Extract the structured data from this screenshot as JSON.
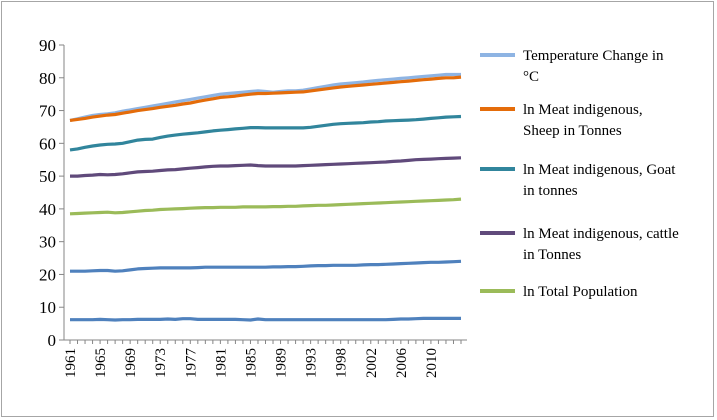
{
  "chart_data": {
    "type": "line",
    "title": "",
    "xlabel": "",
    "ylabel": "",
    "ylim": [
      0,
      90
    ],
    "yticks": [
      0,
      10,
      20,
      30,
      40,
      50,
      60,
      70,
      80,
      90
    ],
    "x": [
      1961,
      1962,
      1963,
      1964,
      1965,
      1966,
      1967,
      1968,
      1969,
      1970,
      1971,
      1972,
      1973,
      1974,
      1975,
      1976,
      1977,
      1978,
      1979,
      1980,
      1981,
      1982,
      1983,
      1984,
      1985,
      1986,
      1987,
      1988,
      1989,
      1990,
      1991,
      1992,
      1993,
      1994,
      1995,
      1996,
      1997,
      1998,
      1999,
      2000,
      2001,
      2002,
      2003,
      2004,
      2005,
      2006,
      2007,
      2008,
      2009,
      2010,
      2011,
      2012,
      2013
    ],
    "xtick_labels": [
      "1961",
      "1965",
      "1969",
      "1973",
      "1977",
      "1981",
      "1985",
      "1989",
      "1993",
      "1998",
      "2002",
      "2006",
      "2010"
    ],
    "xtick_index": [
      0,
      4,
      8,
      12,
      16,
      20,
      24,
      28,
      32,
      36,
      40,
      44,
      48
    ],
    "legend_position": "right",
    "series": [
      {
        "name": "Temperature Change in °C",
        "legend_lines": [
          "Temperature Change in",
          "°C"
        ],
        "color": "#8eb4e3",
        "values": [
          67,
          67.5,
          68,
          68.5,
          68.8,
          69,
          69.3,
          69.8,
          70.2,
          70.6,
          71,
          71.4,
          71.8,
          72.2,
          72.6,
          73,
          73.4,
          73.8,
          74.2,
          74.6,
          75,
          75.2,
          75.4,
          75.6,
          75.8,
          76,
          75.8,
          75.6,
          75.8,
          76,
          76,
          76.2,
          76.6,
          77,
          77.4,
          77.8,
          78.1,
          78.3,
          78.5,
          78.7,
          79,
          79.2,
          79.4,
          79.6,
          79.8,
          80,
          80.2,
          80.4,
          80.6,
          80.8,
          81,
          81,
          81
        ]
      },
      {
        "name": "ln Meat indigenous, Sheep in Tonnes",
        "legend_lines": [
          "ln Meat indigenous,",
          "Sheep in Tonnes"
        ],
        "color": "#e46c0a",
        "values": [
          67,
          67.3,
          67.6,
          68,
          68.3,
          68.6,
          68.8,
          69.2,
          69.6,
          70,
          70.3,
          70.6,
          71,
          71.3,
          71.6,
          72,
          72.3,
          72.8,
          73.2,
          73.6,
          74,
          74.2,
          74.4,
          74.7,
          75,
          75.2,
          75.2,
          75.3,
          75.4,
          75.5,
          75.6,
          75.7,
          76,
          76.3,
          76.6,
          76.9,
          77.2,
          77.4,
          77.6,
          77.8,
          78,
          78.2,
          78.4,
          78.6,
          78.8,
          79,
          79.2,
          79.4,
          79.6,
          79.8,
          80,
          80,
          80.2
        ]
      },
      {
        "name": "ln Meat indigenous, Goat in tonnes",
        "legend_lines": [
          "ln Meat indigenous, Goat",
          "in tonnes"
        ],
        "color": "#31859c",
        "values": [
          58,
          58.3,
          58.8,
          59.2,
          59.5,
          59.7,
          59.8,
          60,
          60.5,
          61,
          61.2,
          61.3,
          61.8,
          62.2,
          62.5,
          62.8,
          63,
          63.2,
          63.5,
          63.8,
          64,
          64.2,
          64.4,
          64.6,
          64.8,
          64.8,
          64.7,
          64.7,
          64.7,
          64.7,
          64.7,
          64.7,
          64.9,
          65.2,
          65.5,
          65.8,
          66,
          66.1,
          66.2,
          66.3,
          66.5,
          66.6,
          66.8,
          66.9,
          67,
          67.1,
          67.2,
          67.4,
          67.6,
          67.8,
          68,
          68.1,
          68.2
        ]
      },
      {
        "name": "ln Meat indigenous, cattle in Tonnes",
        "legend_lines": [
          "ln Meat indigenous, cattle",
          "in Tonnes"
        ],
        "color": "#604a7b",
        "values": [
          50,
          50,
          50.2,
          50.3,
          50.5,
          50.4,
          50.5,
          50.7,
          51,
          51.3,
          51.4,
          51.5,
          51.7,
          51.9,
          52,
          52.2,
          52.4,
          52.6,
          52.8,
          53,
          53.1,
          53.1,
          53.2,
          53.3,
          53.4,
          53.2,
          53.1,
          53.1,
          53.1,
          53.1,
          53.1,
          53.2,
          53.3,
          53.4,
          53.5,
          53.6,
          53.7,
          53.8,
          53.9,
          54,
          54.1,
          54.2,
          54.3,
          54.5,
          54.6,
          54.8,
          55,
          55.1,
          55.2,
          55.3,
          55.4,
          55.5,
          55.6
        ]
      },
      {
        "name": "ln Total Population",
        "legend_lines": [
          "ln Total Population"
        ],
        "color": "#9bbb59",
        "values": [
          38.5,
          38.6,
          38.7,
          38.8,
          38.9,
          39,
          38.8,
          38.9,
          39.1,
          39.3,
          39.5,
          39.6,
          39.8,
          39.9,
          40,
          40.1,
          40.2,
          40.3,
          40.4,
          40.4,
          40.5,
          40.5,
          40.5,
          40.6,
          40.6,
          40.6,
          40.6,
          40.7,
          40.7,
          40.8,
          40.8,
          40.9,
          41,
          41.1,
          41.1,
          41.2,
          41.3,
          41.4,
          41.5,
          41.6,
          41.7,
          41.8,
          41.9,
          42,
          42.1,
          42.2,
          42.3,
          42.4,
          42.5,
          42.6,
          42.7,
          42.8,
          43
        ]
      },
      {
        "name": "",
        "legend_lines": [],
        "color": "#4f81bd",
        "values": [
          21,
          21,
          21,
          21.1,
          21.2,
          21.2,
          21,
          21.1,
          21.4,
          21.7,
          21.8,
          21.9,
          22,
          22,
          22,
          22,
          22,
          22.1,
          22.2,
          22.2,
          22.2,
          22.2,
          22.2,
          22.2,
          22.2,
          22.2,
          22.2,
          22.3,
          22.3,
          22.4,
          22.4,
          22.5,
          22.6,
          22.7,
          22.7,
          22.8,
          22.8,
          22.8,
          22.8,
          22.9,
          23,
          23,
          23.1,
          23.2,
          23.3,
          23.4,
          23.5,
          23.6,
          23.7,
          23.7,
          23.8,
          23.9,
          24
        ]
      },
      {
        "name": "",
        "legend_lines": [],
        "color": "#4f81bd",
        "values": [
          6.2,
          6.2,
          6.2,
          6.2,
          6.3,
          6.2,
          6.1,
          6.2,
          6.2,
          6.3,
          6.3,
          6.3,
          6.3,
          6.4,
          6.3,
          6.5,
          6.5,
          6.3,
          6.3,
          6.3,
          6.3,
          6.3,
          6.3,
          6.2,
          6.1,
          6.4,
          6.2,
          6.2,
          6.2,
          6.2,
          6.2,
          6.2,
          6.2,
          6.2,
          6.2,
          6.2,
          6.2,
          6.2,
          6.2,
          6.2,
          6.2,
          6.2,
          6.2,
          6.3,
          6.4,
          6.4,
          6.5,
          6.6,
          6.6,
          6.6,
          6.6,
          6.6,
          6.6
        ]
      }
    ]
  }
}
